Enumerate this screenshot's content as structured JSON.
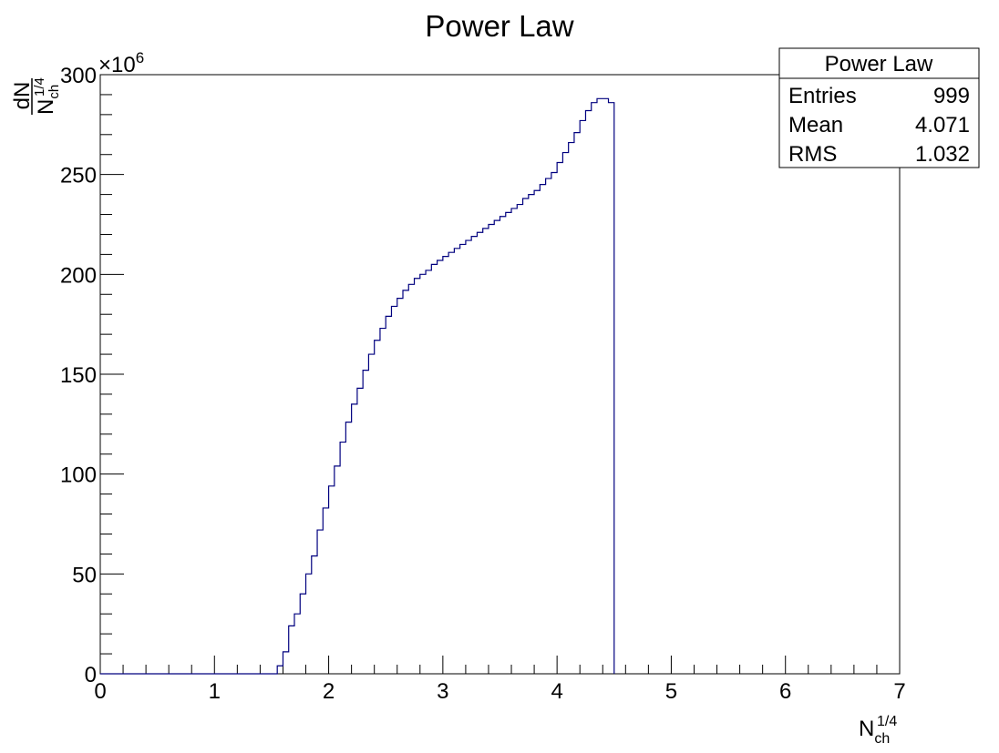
{
  "chart_data": {
    "type": "histogram",
    "title": "Power Law",
    "xlabel": "N",
    "xlabel_sub": "ch",
    "xlabel_sup": "1/4",
    "ylabel_num": "dN",
    "ylabel_den": "N",
    "ylabel_den_sub": "ch",
    "ylabel_den_sup": "1/4",
    "y_multiplier_prefix": "×10",
    "y_multiplier_exp": "6",
    "xlim": [
      0,
      7
    ],
    "ylim": [
      0,
      300
    ],
    "x_ticks": [
      "0",
      "1",
      "2",
      "3",
      "4",
      "5",
      "6",
      "7"
    ],
    "y_ticks": [
      "0",
      "50",
      "100",
      "150",
      "200",
      "250",
      "300"
    ],
    "bin_width": 0.05,
    "bin_start": 0.0,
    "values": [
      0,
      0,
      0,
      0,
      0,
      0,
      0,
      0,
      0,
      0,
      0,
      0,
      0,
      0,
      0,
      0,
      0,
      0,
      0,
      0,
      0,
      0,
      0,
      0,
      0,
      0,
      0,
      0,
      0,
      0,
      0,
      4,
      11,
      24,
      30,
      40,
      50,
      59,
      72,
      83,
      94,
      104,
      116,
      126,
      135,
      143,
      152,
      160,
      167,
      173,
      179,
      184,
      188,
      192,
      195,
      198,
      200,
      202,
      205,
      207,
      209,
      211,
      213,
      215,
      217,
      219,
      221,
      223,
      225,
      227,
      229,
      231,
      233,
      235,
      238,
      240,
      242,
      245,
      248,
      251,
      256,
      261,
      266,
      271,
      277,
      282,
      286,
      288,
      288,
      286
    ],
    "series_color": "#00007f",
    "stats": {
      "title": "Power Law",
      "rows": [
        {
          "label": "Entries",
          "value": "999"
        },
        {
          "label": "Mean",
          "value": "4.071"
        },
        {
          "label": "RMS",
          "value": "1.032"
        }
      ]
    }
  }
}
